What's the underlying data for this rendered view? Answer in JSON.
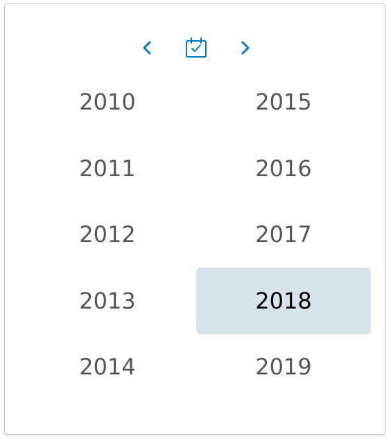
{
  "navigation": {
    "previous_icon": "chevron-left-icon",
    "today_icon": "calendar-check-icon",
    "next_icon": "chevron-right-icon",
    "icon_color": "#0079b8"
  },
  "years": {
    "column_1": [
      "2010",
      "2011",
      "2012",
      "2013",
      "2014"
    ],
    "column_2": [
      "2015",
      "2016",
      "2017",
      "2018",
      "2019"
    ],
    "selected": "2018"
  },
  "colors": {
    "text": "#565656",
    "selected_text": "#000000",
    "selected_background": "#d8e3e9",
    "border": "#c6c6c6"
  }
}
